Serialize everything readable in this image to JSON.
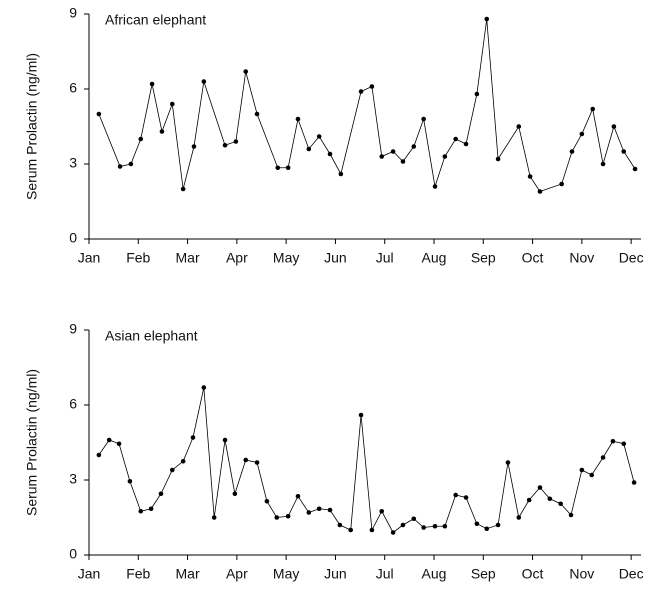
{
  "chart_data": [
    {
      "type": "line",
      "title": "African elephant",
      "y_label": "Serum Prolactin (ng/ml)",
      "color": "#000000",
      "xlim": [
        0,
        11.2
      ],
      "ylim": [
        0,
        9
      ],
      "yticks": [
        0,
        3,
        6,
        9
      ],
      "xticks": [
        {
          "value": 0,
          "label": "Jan"
        },
        {
          "value": 1,
          "label": "Feb"
        },
        {
          "value": 2,
          "label": "Mar"
        },
        {
          "value": 3,
          "label": "Apr"
        },
        {
          "value": 4,
          "label": "May"
        },
        {
          "value": 5,
          "label": "Jun"
        },
        {
          "value": 6,
          "label": "Jul"
        },
        {
          "value": 7,
          "label": "Aug"
        },
        {
          "value": 8,
          "label": "Sep"
        },
        {
          "value": 9,
          "label": "Oct"
        },
        {
          "value": 10,
          "label": "Nov"
        },
        {
          "value": 11,
          "label": "Dec"
        }
      ],
      "x": [
        0.2,
        0.63,
        0.85,
        1.05,
        1.28,
        1.48,
        1.69,
        1.91,
        2.13,
        2.33,
        2.76,
        2.98,
        3.18,
        3.41,
        3.83,
        4.04,
        4.24,
        4.46,
        4.67,
        4.89,
        5.11,
        5.52,
        5.74,
        5.94,
        6.17,
        6.37,
        6.59,
        6.79,
        7.02,
        7.22,
        7.44,
        7.65,
        7.87,
        8.07,
        8.3,
        8.72,
        8.95,
        9.15,
        9.59,
        9.8,
        10.0,
        10.22,
        10.43,
        10.65,
        10.85,
        11.08
      ],
      "values": [
        5.0,
        2.9,
        3.0,
        4.0,
        6.2,
        4.3,
        5.4,
        2.0,
        3.7,
        6.3,
        3.75,
        3.9,
        6.7,
        5.0,
        2.85,
        2.85,
        4.8,
        3.6,
        4.1,
        3.4,
        2.6,
        5.9,
        6.1,
        3.3,
        3.5,
        3.1,
        3.7,
        4.8,
        2.1,
        3.3,
        4.0,
        3.8,
        5.8,
        8.8,
        3.2,
        4.5,
        2.5,
        1.9,
        2.2,
        3.5,
        4.2,
        5.2,
        3.0,
        4.5,
        3.5,
        2.8
      ]
    },
    {
      "type": "line",
      "title": "Asian elephant",
      "y_label": "Serum Prolactin (ng/ml)",
      "color": "#000000",
      "xlim": [
        0,
        11.2
      ],
      "ylim": [
        0,
        9
      ],
      "yticks": [
        0,
        3,
        6,
        9
      ],
      "xticks": [
        {
          "value": 0,
          "label": "Jan"
        },
        {
          "value": 1,
          "label": "Feb"
        },
        {
          "value": 2,
          "label": "Mar"
        },
        {
          "value": 3,
          "label": "Apr"
        },
        {
          "value": 4,
          "label": "May"
        },
        {
          "value": 5,
          "label": "Jun"
        },
        {
          "value": 6,
          "label": "Jul"
        },
        {
          "value": 7,
          "label": "Aug"
        },
        {
          "value": 8,
          "label": "Sep"
        },
        {
          "value": 9,
          "label": "Oct"
        },
        {
          "value": 10,
          "label": "Nov"
        },
        {
          "value": 11,
          "label": "Dec"
        }
      ],
      "x": [
        0.2,
        0.41,
        0.61,
        0.83,
        1.05,
        1.26,
        1.46,
        1.69,
        1.91,
        2.11,
        2.33,
        2.54,
        2.76,
        2.96,
        3.18,
        3.41,
        3.61,
        3.81,
        4.04,
        4.24,
        4.46,
        4.67,
        4.89,
        5.09,
        5.31,
        5.52,
        5.74,
        5.94,
        6.17,
        6.37,
        6.59,
        6.79,
        7.02,
        7.22,
        7.44,
        7.65,
        7.87,
        8.07,
        8.3,
        8.5,
        8.72,
        8.93,
        9.15,
        9.35,
        9.57,
        9.78,
        10.0,
        10.2,
        10.43,
        10.63,
        10.85,
        11.06
      ],
      "values": [
        4.0,
        4.6,
        4.45,
        2.95,
        1.75,
        1.85,
        2.45,
        3.4,
        3.75,
        4.7,
        6.7,
        1.5,
        4.6,
        2.45,
        3.8,
        3.7,
        2.15,
        1.5,
        1.55,
        2.35,
        1.7,
        1.85,
        1.8,
        1.2,
        1.0,
        5.6,
        1.0,
        1.75,
        0.9,
        1.2,
        1.45,
        1.1,
        1.15,
        1.15,
        2.4,
        2.3,
        1.25,
        1.05,
        1.2,
        3.7,
        1.5,
        2.2,
        2.7,
        2.25,
        2.05,
        1.6,
        3.4,
        3.2,
        3.9,
        4.55,
        4.45,
        2.9
      ]
    }
  ]
}
